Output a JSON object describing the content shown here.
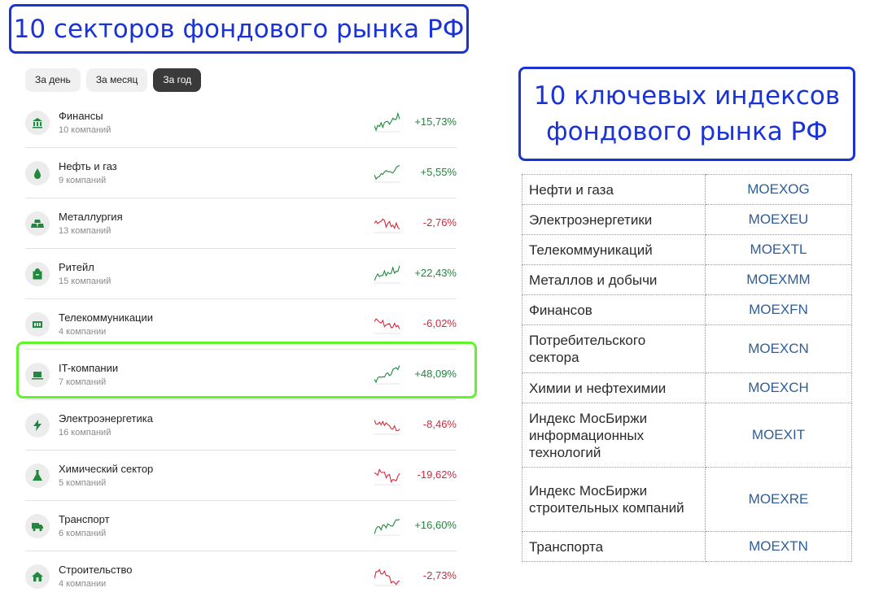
{
  "titles": {
    "left": "10 секторов фондового рынка РФ",
    "right": "10 ключевых индексов фондового рынка РФ"
  },
  "tabs": [
    {
      "label": "За день",
      "active": false
    },
    {
      "label": "За месяц",
      "active": false
    },
    {
      "label": "За год",
      "active": true
    }
  ],
  "sectors": [
    {
      "name": "Финансы",
      "count": "10 компаний",
      "change": "+15,73%",
      "trend": "up",
      "icon": "bank-icon",
      "highlighted": false
    },
    {
      "name": "Нефть и газ",
      "count": "9 компаний",
      "change": "+5,55%",
      "trend": "up",
      "icon": "oil-drop-icon",
      "highlighted": false
    },
    {
      "name": "Металлургия",
      "count": "13 компаний",
      "change": "-2,76%",
      "trend": "down",
      "icon": "ingots-icon",
      "highlighted": false
    },
    {
      "name": "Ритейл",
      "count": "15 компаний",
      "change": "+22,43%",
      "trend": "up",
      "icon": "shopping-bag-icon",
      "highlighted": false
    },
    {
      "name": "Телекоммуникации",
      "count": "4 компании",
      "change": "-6,02%",
      "trend": "down",
      "icon": "sim-card-icon",
      "highlighted": false
    },
    {
      "name": "IT-компании",
      "count": "7 компаний",
      "change": "+48,09%",
      "trend": "up",
      "icon": "laptop-icon",
      "highlighted": true
    },
    {
      "name": "Электроэнергетика",
      "count": "16 компаний",
      "change": "-8,46%",
      "trend": "down",
      "icon": "lightning-icon",
      "highlighted": false
    },
    {
      "name": "Химический сектор",
      "count": "5 компаний",
      "change": "-19,62%",
      "trend": "down",
      "icon": "flask-icon",
      "highlighted": false
    },
    {
      "name": "Транспорт",
      "count": "6 компаний",
      "change": "+16,60%",
      "trend": "up",
      "icon": "truck-icon",
      "highlighted": false
    },
    {
      "name": "Строительство",
      "count": "4 компании",
      "change": "-2,73%",
      "trend": "down",
      "icon": "house-icon",
      "highlighted": false
    }
  ],
  "indices": [
    {
      "name": "Нефти и газа",
      "ticker": "MOEXOG"
    },
    {
      "name": "Электроэнергетики",
      "ticker": "MOEXEU"
    },
    {
      "name": "Телекоммуникаций",
      "ticker": "MOEXTL"
    },
    {
      "name": "Металлов и добычи",
      "ticker": "MOEXMM"
    },
    {
      "name": "Финансов",
      "ticker": "MOEXFN"
    },
    {
      "name": "Потребительского сектора",
      "ticker": "MOEXCN"
    },
    {
      "name": "Химии и нефтехимии",
      "ticker": "MOEXCH"
    },
    {
      "name": "Индекс МосБиржи информационных технологий",
      "ticker": "MOEXIT"
    },
    {
      "name": "Индекс МосБиржи строительных компаний",
      "ticker": "MOEXRE"
    },
    {
      "name": "Транспорта",
      "ticker": "MOEXTN"
    }
  ],
  "colors": {
    "positive": "#1a8a3a",
    "negative": "#d9263a",
    "title_border": "#1a33d6",
    "highlight_border": "#5ef52a"
  }
}
